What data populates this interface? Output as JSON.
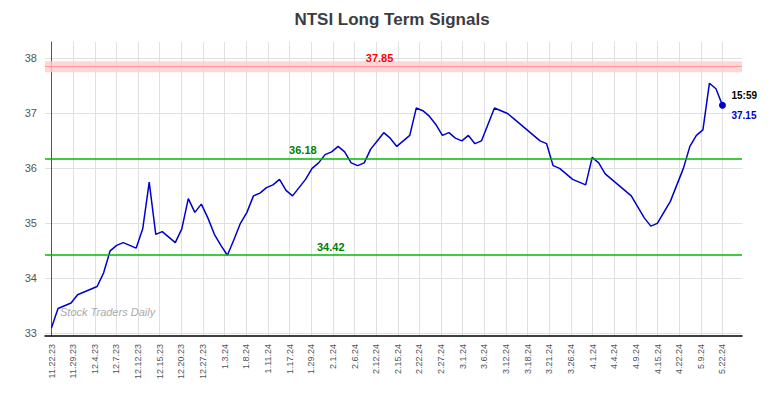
{
  "chart_data": {
    "type": "line",
    "title": "NTSI Long Term Signals",
    "watermark": "Stock Traders Daily",
    "color": "#0000cc",
    "grid": true,
    "x": [
      0,
      1,
      2,
      3,
      4,
      5,
      6,
      7,
      8,
      9,
      10,
      11,
      12,
      13,
      14,
      15,
      16,
      17,
      18,
      19,
      20,
      21,
      22,
      23,
      24,
      25,
      26,
      27,
      28,
      29,
      30,
      31,
      32,
      33,
      34,
      35,
      36,
      37,
      38,
      39,
      40,
      41,
      42,
      43,
      44,
      45,
      46,
      47,
      48,
      49,
      50,
      51,
      52,
      53,
      54,
      55,
      56,
      57,
      58,
      59,
      60,
      61,
      62,
      63,
      64,
      65,
      66,
      67,
      68,
      69,
      70,
      71,
      72,
      73,
      74,
      75,
      76,
      77,
      78,
      79,
      80,
      81,
      82,
      83,
      84,
      85,
      86,
      87,
      88,
      89,
      90,
      91,
      92,
      93,
      94,
      95,
      96,
      97,
      98,
      99,
      100,
      101,
      102,
      103
    ],
    "values": [
      33.1,
      33.45,
      33.5,
      33.55,
      33.7,
      33.75,
      33.8,
      33.85,
      34.1,
      34.5,
      34.6,
      34.65,
      34.6,
      34.55,
      34.9,
      35.75,
      34.8,
      34.85,
      34.75,
      34.65,
      34.9,
      35.45,
      35.2,
      35.35,
      35.1,
      34.8,
      34.6,
      34.42,
      34.7,
      35.0,
      35.2,
      35.5,
      35.55,
      35.65,
      35.7,
      35.8,
      35.6,
      35.5,
      35.65,
      35.8,
      36.0,
      36.1,
      36.25,
      36.3,
      36.4,
      36.3,
      36.1,
      36.05,
      36.1,
      36.35,
      36.5,
      36.65,
      36.55,
      36.4,
      36.5,
      36.6,
      37.1,
      37.05,
      36.95,
      36.8,
      36.6,
      36.65,
      36.55,
      36.5,
      36.6,
      36.45,
      36.5,
      36.8,
      37.1,
      37.05,
      37.0,
      36.9,
      36.8,
      36.7,
      36.6,
      36.5,
      36.45,
      36.05,
      36.0,
      35.9,
      35.8,
      35.75,
      35.7,
      36.2,
      36.1,
      35.9,
      35.8,
      35.7,
      35.6,
      35.5,
      35.3,
      35.1,
      34.95,
      35.0,
      35.2,
      35.4,
      35.7,
      36.0,
      36.4,
      36.6,
      36.7,
      37.55,
      37.45,
      37.15
    ],
    "xlim": [
      -1,
      106
    ],
    "xticks": [
      {
        "value": 0,
        "label": "11.22.23"
      },
      {
        "value": 3.322581,
        "label": "11.29.23"
      },
      {
        "value": 6.645161,
        "label": "12.4.23"
      },
      {
        "value": 9.967742,
        "label": "12.7.23"
      },
      {
        "value": 13.290323,
        "label": "12.12.23"
      },
      {
        "value": 16.612903,
        "label": "12.15.23"
      },
      {
        "value": 19.935484,
        "label": "12.20.23"
      },
      {
        "value": 23.258065,
        "label": "12.27.23"
      },
      {
        "value": 26.580645,
        "label": "1.3.24"
      },
      {
        "value": 29.903226,
        "label": "1.8.24"
      },
      {
        "value": 33.225806,
        "label": "1.11.24"
      },
      {
        "value": 36.548387,
        "label": "1.17.24"
      },
      {
        "value": 39.870968,
        "label": "1.29.24"
      },
      {
        "value": 43.193548,
        "label": "2.1.24"
      },
      {
        "value": 46.516129,
        "label": "2.6.24"
      },
      {
        "value": 49.83871,
        "label": "2.12.24"
      },
      {
        "value": 53.16129,
        "label": "2.15.24"
      },
      {
        "value": 56.483871,
        "label": "2.22.24"
      },
      {
        "value": 59.806452,
        "label": "2.27.24"
      },
      {
        "value": 63.129032,
        "label": "3.1.24"
      },
      {
        "value": 66.451613,
        "label": "3.6.24"
      },
      {
        "value": 69.774194,
        "label": "3.12.24"
      },
      {
        "value": 73.096774,
        "label": "3.18.24"
      },
      {
        "value": 76.419355,
        "label": "3.21.24"
      },
      {
        "value": 79.741935,
        "label": "3.26.24"
      },
      {
        "value": 83.064516,
        "label": "4.1.24"
      },
      {
        "value": 86.387097,
        "label": "4.4.24"
      },
      {
        "value": 89.709677,
        "label": "4.9.24"
      },
      {
        "value": 93.032258,
        "label": "4.15.24"
      },
      {
        "value": 96.354839,
        "label": "4.22.24"
      },
      {
        "value": 99.677419,
        "label": "5.9.24"
      },
      {
        "value": 103,
        "label": "5.22.24"
      }
    ],
    "ylim": [
      32.95,
      38.3
    ],
    "yticks": [
      33,
      34,
      35,
      36,
      37,
      38
    ],
    "hlines": [
      {
        "value": 37.85,
        "label": "37.85",
        "color": "#ff9999",
        "label_color": "red",
        "band": [
          37.75,
          37.95
        ],
        "band_color": "#ffcccc"
      },
      {
        "value": 36.18,
        "label": "36.18",
        "color": "#00bb00",
        "label_color": "green"
      },
      {
        "value": 34.42,
        "label": "34.42",
        "color": "#00bb00",
        "label_color": "green"
      }
    ],
    "last_point": {
      "value": 37.15,
      "time_label": "15:59",
      "price_label": "37.15"
    }
  }
}
